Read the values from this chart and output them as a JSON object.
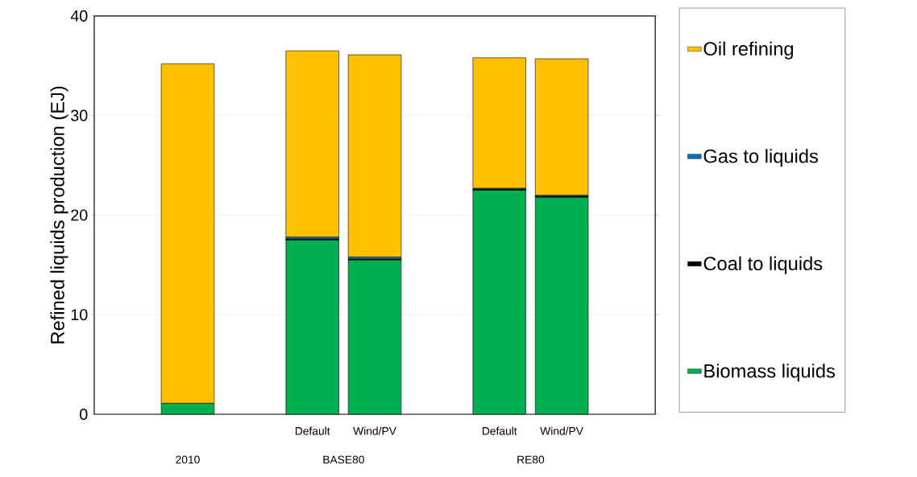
{
  "chart_data": {
    "type": "bar",
    "stacked": true,
    "ylabel": "Refined liquids production (EJ)",
    "categories": [
      null,
      null,
      "Default",
      "Wind/PV",
      null,
      "Default",
      "Wind/PV"
    ],
    "series": [
      {
        "name": "Biomass liquids",
        "color": "#00b050",
        "values": [
          1.1,
          null,
          17.5,
          15.5,
          null,
          22.5,
          21.8
        ]
      },
      {
        "name": "Coal to liquids",
        "color": "#000000",
        "values": [
          null,
          null,
          0.1,
          0.1,
          null,
          0.1,
          0.1
        ]
      },
      {
        "name": "Gas to liquids",
        "color": "#0070c0",
        "values": [
          null,
          null,
          0.2,
          0.2,
          null,
          0.1,
          0.1
        ]
      },
      {
        "name": "Oil refining",
        "color": "#ffc000",
        "values": [
          34.1,
          null,
          18.7,
          20.3,
          null,
          13.1,
          13.7
        ]
      }
    ],
    "annotations": [
      "2010",
      "BASE80",
      "RE80"
    ],
    "ylim": [
      0,
      40
    ],
    "yticks": [
      0,
      10,
      20,
      30,
      40
    ],
    "grid": "y",
    "legend": "right"
  }
}
